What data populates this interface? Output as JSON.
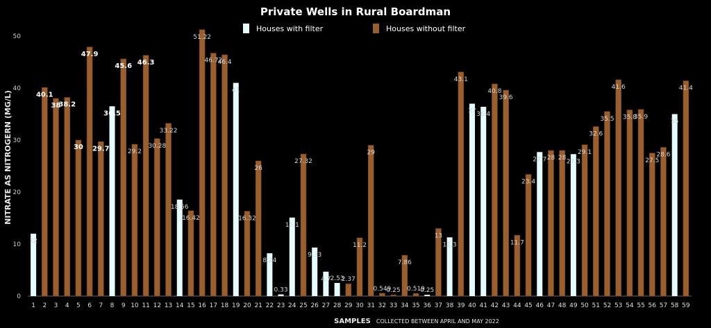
{
  "chart_data": {
    "type": "bar",
    "title": "Private Wells in Rural Boardman",
    "ylabel": "NITRATE AS NITROGERN  (MG/L)",
    "xlabel_main": "SAMPLES",
    "xlabel_sub": "COLLECTED BETWEEN APRIL AND MAY 2022",
    "ylim": [
      0,
      50
    ],
    "yticks": [
      "0",
      "10",
      "20",
      "30",
      "40",
      "50"
    ],
    "legend": {
      "placement": "top",
      "items": [
        {
          "label": "Houses with filter",
          "color": "#e6fbfd"
        },
        {
          "label": "Houses without filter",
          "color": "#9a5f2e"
        }
      ]
    },
    "colors": {
      "with_filter": "#e6fbfd",
      "without_filter": "#9a5f2e",
      "background": "#000000"
    },
    "samples": [
      {
        "x": "1",
        "value": 12,
        "filter": true,
        "label": "12"
      },
      {
        "x": "2",
        "value": 40.1,
        "filter": false,
        "label": "40.1",
        "bold": true
      },
      {
        "x": "3",
        "value": 38,
        "filter": false,
        "label": "38",
        "bold": true
      },
      {
        "x": "4",
        "value": 38.2,
        "filter": false,
        "label": "38.2",
        "bold": true
      },
      {
        "x": "5",
        "value": 30,
        "filter": false,
        "label": "30",
        "bold": true
      },
      {
        "x": "6",
        "value": 47.9,
        "filter": false,
        "label": "47.9",
        "bold": true
      },
      {
        "x": "7",
        "value": 29.7,
        "filter": false,
        "label": "29.7",
        "bold": true
      },
      {
        "x": "8",
        "value": 36.5,
        "filter": true,
        "label": "36.5",
        "bold": true
      },
      {
        "x": "9",
        "value": 45.6,
        "filter": false,
        "label": "45.6",
        "bold": true
      },
      {
        "x": "10",
        "value": 29.2,
        "filter": false,
        "label": "29.2"
      },
      {
        "x": "11",
        "value": 46.3,
        "filter": false,
        "label": "46.3",
        "bold": true
      },
      {
        "x": "12",
        "value": 30.28,
        "filter": false,
        "label": "30.28"
      },
      {
        "x": "13",
        "value": 33.22,
        "filter": false,
        "label": "33.22"
      },
      {
        "x": "14",
        "value": 18.56,
        "filter": true,
        "label": "18.56"
      },
      {
        "x": "15",
        "value": 16.42,
        "filter": false,
        "label": "16.42"
      },
      {
        "x": "16",
        "value": 51.22,
        "filter": false,
        "label": "51.22"
      },
      {
        "x": "17",
        "value": 46.72,
        "filter": false,
        "label": "46.72"
      },
      {
        "x": "18",
        "value": 46.4,
        "filter": false,
        "label": "46.4"
      },
      {
        "x": "19",
        "value": 41,
        "filter": true,
        "label": "41"
      },
      {
        "x": "20",
        "value": 16.32,
        "filter": false,
        "label": "16.32"
      },
      {
        "x": "21",
        "value": 26,
        "filter": false,
        "label": "26"
      },
      {
        "x": "22",
        "value": 8.24,
        "filter": true,
        "label": "8.24"
      },
      {
        "x": "23",
        "value": 0.33,
        "filter": true,
        "label": "0.33"
      },
      {
        "x": "24",
        "value": 15.1,
        "filter": true,
        "label": "15.1"
      },
      {
        "x": "25",
        "value": 27.32,
        "filter": false,
        "label": "27.32"
      },
      {
        "x": "26",
        "value": 9.33,
        "filter": true,
        "label": "9.33"
      },
      {
        "x": "27",
        "value": 4.7,
        "filter": true,
        "label": "4.7"
      },
      {
        "x": "28",
        "value": 2.53,
        "filter": true,
        "label": "2.53"
      },
      {
        "x": "29",
        "value": 2.37,
        "filter": false,
        "label": "2.37"
      },
      {
        "x": "30",
        "value": 11.2,
        "filter": false,
        "label": "11.2"
      },
      {
        "x": "31",
        "value": 29,
        "filter": false,
        "label": "29"
      },
      {
        "x": "32",
        "value": 0.549,
        "filter": false,
        "label": "0.549"
      },
      {
        "x": "33",
        "value": 0.25,
        "filter": false,
        "label": "0.25"
      },
      {
        "x": "34",
        "value": 7.86,
        "filter": false,
        "label": "7.86"
      },
      {
        "x": "35",
        "value": 0.519,
        "filter": false,
        "label": "0.519"
      },
      {
        "x": "36",
        "value": 0.25,
        "filter": true,
        "label": "0.25"
      },
      {
        "x": "37",
        "value": 13,
        "filter": false,
        "label": "13"
      },
      {
        "x": "38",
        "value": 11.3,
        "filter": true,
        "label": "11.3"
      },
      {
        "x": "39",
        "value": 43.1,
        "filter": false,
        "label": "43.1"
      },
      {
        "x": "40",
        "value": 37,
        "filter": true,
        "label": "37"
      },
      {
        "x": "41",
        "value": 36.4,
        "filter": true,
        "label": "36.4"
      },
      {
        "x": "42",
        "value": 40.8,
        "filter": false,
        "label": "40.8"
      },
      {
        "x": "43",
        "value": 39.6,
        "filter": false,
        "label": "39.6"
      },
      {
        "x": "44",
        "value": 11.7,
        "filter": false,
        "label": "11.7"
      },
      {
        "x": "45",
        "value": 23.4,
        "filter": false,
        "label": "23.4"
      },
      {
        "x": "46",
        "value": 27.7,
        "filter": true,
        "label": "27.7"
      },
      {
        "x": "47",
        "value": 28,
        "filter": false,
        "label": "28"
      },
      {
        "x": "48",
        "value": 28,
        "filter": false,
        "label": "28"
      },
      {
        "x": "49",
        "value": 27.3,
        "filter": true,
        "label": "27.3"
      },
      {
        "x": "50",
        "value": 29.1,
        "filter": false,
        "label": "29.1"
      },
      {
        "x": "51",
        "value": 32.6,
        "filter": false,
        "label": "32.6"
      },
      {
        "x": "52",
        "value": 35.5,
        "filter": false,
        "label": "35.5"
      },
      {
        "x": "53",
        "value": 41.6,
        "filter": false,
        "label": "41.6"
      },
      {
        "x": "54",
        "value": 35.8,
        "filter": false,
        "label": "35.8"
      },
      {
        "x": "55",
        "value": 35.9,
        "filter": false,
        "label": "35.9"
      },
      {
        "x": "56",
        "value": 27.5,
        "filter": false,
        "label": "27.5"
      },
      {
        "x": "57",
        "value": 28.6,
        "filter": false,
        "label": "28.6"
      },
      {
        "x": "58",
        "value": 35,
        "filter": true,
        "label": "35"
      },
      {
        "x": "59",
        "value": 41.4,
        "filter": false,
        "label": "41.4"
      }
    ]
  }
}
